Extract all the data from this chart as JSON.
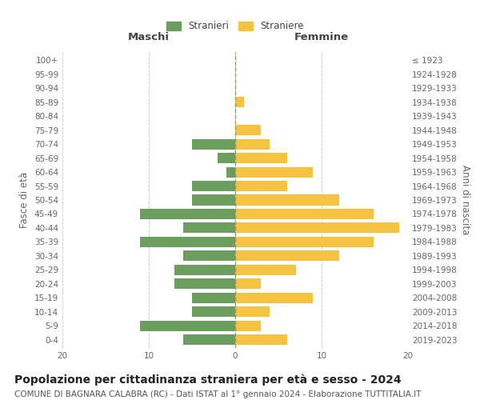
{
  "age_groups": [
    "0-4",
    "5-9",
    "10-14",
    "15-19",
    "20-24",
    "25-29",
    "30-34",
    "35-39",
    "40-44",
    "45-49",
    "50-54",
    "55-59",
    "60-64",
    "65-69",
    "70-74",
    "75-79",
    "80-84",
    "85-89",
    "90-94",
    "95-99",
    "100+"
  ],
  "birth_years": [
    "2019-2023",
    "2014-2018",
    "2009-2013",
    "2004-2008",
    "1999-2003",
    "1994-1998",
    "1989-1993",
    "1984-1988",
    "1979-1983",
    "1974-1978",
    "1969-1973",
    "1964-1968",
    "1959-1963",
    "1954-1958",
    "1949-1953",
    "1944-1948",
    "1939-1943",
    "1934-1938",
    "1929-1933",
    "1924-1928",
    "≤ 1923"
  ],
  "maschi": [
    6,
    11,
    5,
    5,
    7,
    7,
    6,
    11,
    6,
    11,
    5,
    5,
    1,
    2,
    5,
    0,
    0,
    0,
    0,
    0,
    0
  ],
  "femmine": [
    6,
    3,
    4,
    9,
    3,
    7,
    12,
    16,
    19,
    16,
    12,
    6,
    9,
    6,
    4,
    3,
    0,
    1,
    0,
    0,
    0
  ],
  "maschi_color": "#6b9e5e",
  "femmine_color": "#f5c242",
  "bg_color": "#ffffff",
  "grid_color": "#cccccc",
  "title": "Popolazione per cittadinanza straniera per età e sesso - 2024",
  "subtitle": "COMUNE DI BAGNARA CALABRA (RC) - Dati ISTAT al 1° gennaio 2024 - Elaborazione TUTTITALIA.IT",
  "ylabel_left": "Fasce di età",
  "ylabel_right": "Anni di nascita",
  "legend_maschi": "Stranieri",
  "legend_femmine": "Straniere",
  "xlim": 20,
  "title_fontsize": 10,
  "subtitle_fontsize": 7.5,
  "tick_fontsize": 7.5,
  "label_fontsize": 8.5
}
